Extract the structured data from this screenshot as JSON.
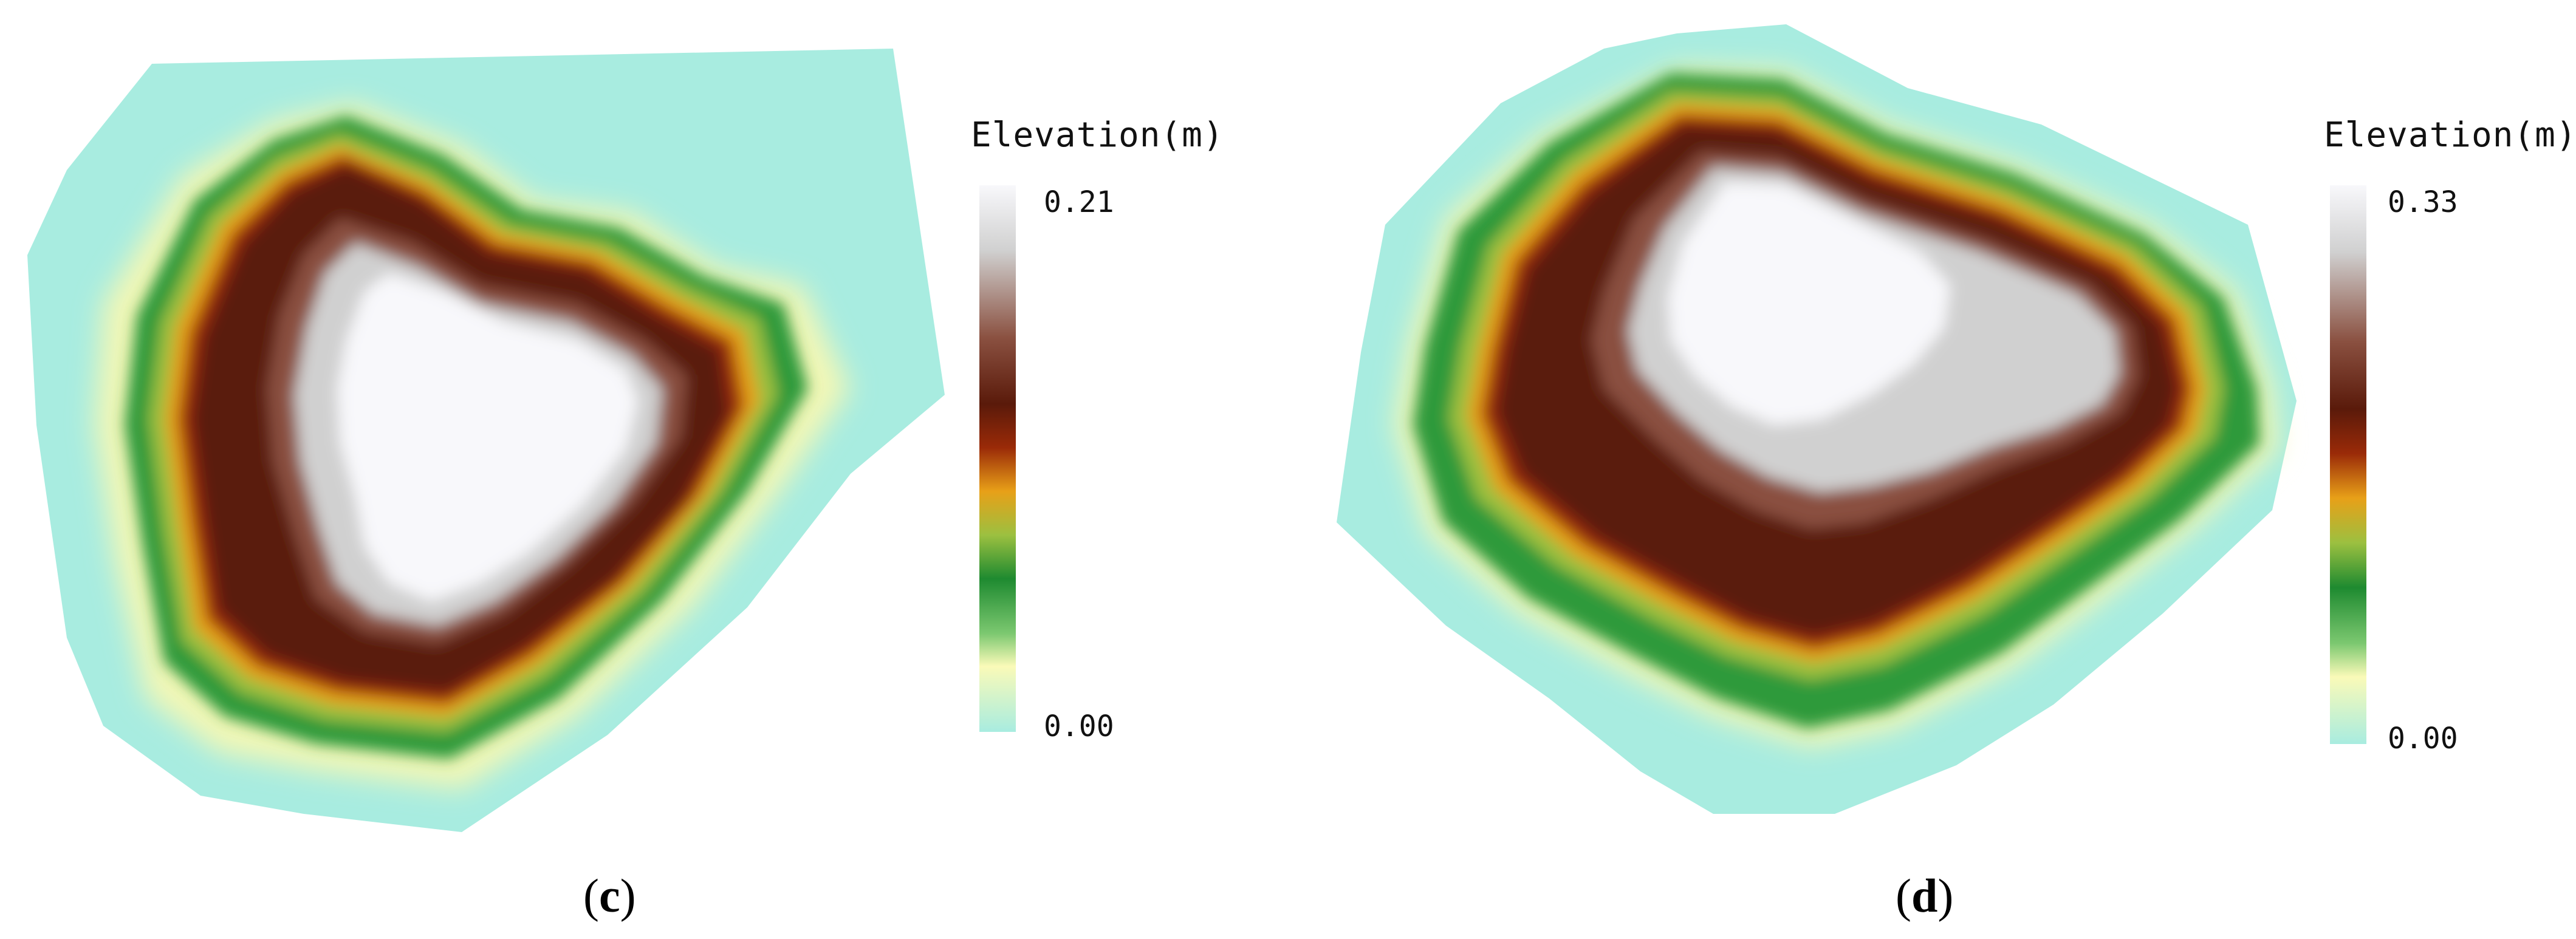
{
  "panels": [
    {
      "id": "c",
      "label_open": "(",
      "label_letter": "c",
      "label_close": ")",
      "legend": {
        "title": "Elevation(m)",
        "max": "0.21",
        "min": "0.00"
      }
    },
    {
      "id": "d",
      "label_open": "(",
      "label_letter": "d",
      "label_close": ")",
      "legend": {
        "title": "Elevation(m)",
        "max": "0.33",
        "min": "0.00"
      }
    }
  ],
  "colors": {
    "background": "#ffffff",
    "ramp": [
      "#f8f8fb",
      "#d0d0d0",
      "#8a5040",
      "#5a1a0a",
      "#9a2a08",
      "#e8a018",
      "#9cc040",
      "#1e8a30",
      "#7cc870",
      "#fafab8",
      "#a8ece0"
    ]
  }
}
